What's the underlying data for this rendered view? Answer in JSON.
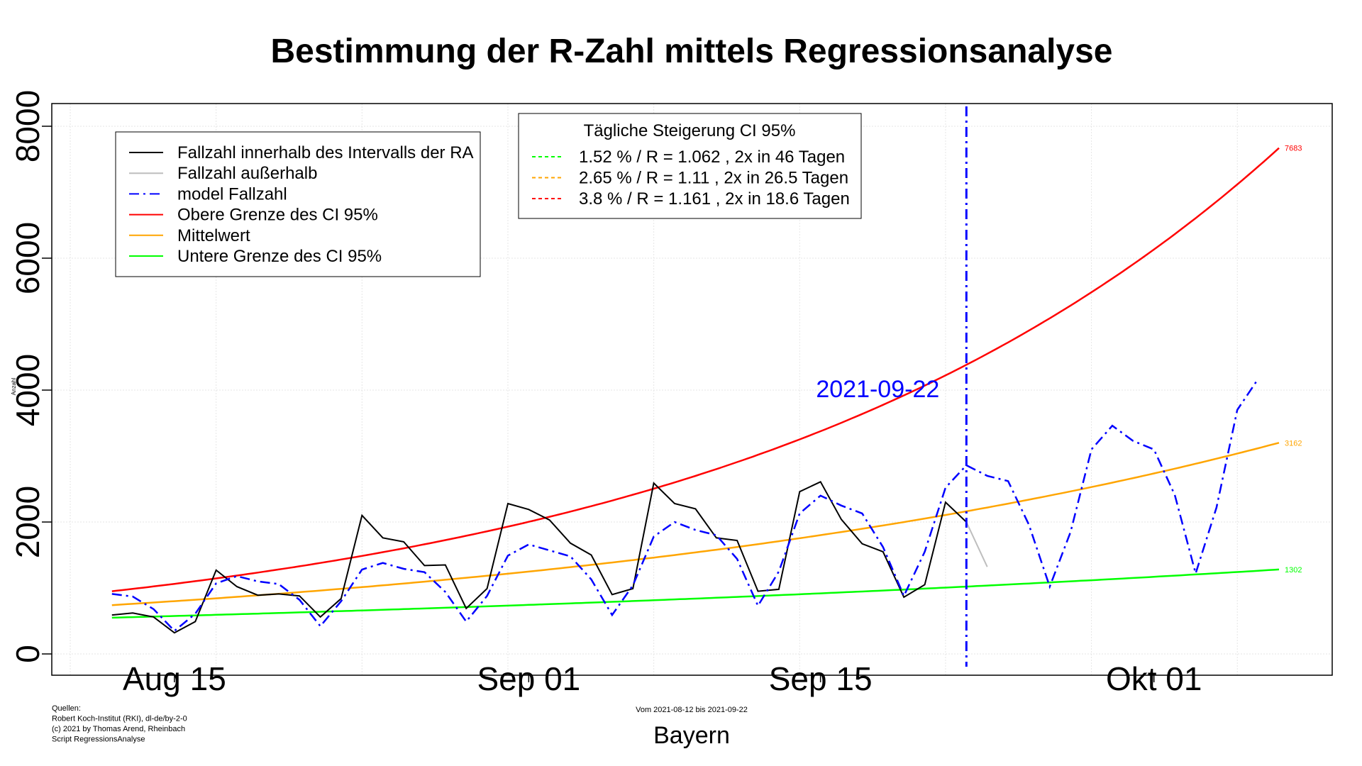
{
  "chart_data": {
    "type": "line",
    "title": "Bestimmung der R-Zahl mittels Regressionsanalyse",
    "ylabel": "Anzahl",
    "region": "Bayern",
    "range_note": "Vom 2021-08-12 bis 2021-09-22",
    "sources": [
      "Quellen:",
      "Robert Koch-Institut (RKI), dl-de/by-2-0",
      "(c) 2021 by Thomas Arend, Rheinbach",
      "Script RegressionsAnalyse"
    ],
    "xlim": [
      "2021-08-10",
      "2021-10-07"
    ],
    "ylim": [
      0,
      8000
    ],
    "yticks": [
      0,
      2000,
      4000,
      6000,
      8000
    ],
    "ytick_labels": [
      "0",
      "2000",
      "4000",
      "6000",
      "8000"
    ],
    "xticks": [
      "2021-08-15",
      "2021-09-01",
      "2021-09-15",
      "2021-10-01"
    ],
    "xtick_labels": [
      "Aug 15",
      "Sep 01",
      "Sep 15",
      "Okt 01"
    ],
    "grid": true,
    "cutoff": {
      "date": "2021-09-22",
      "label": "2021-09-22",
      "color": "#0000ff"
    },
    "series": [
      {
        "name": "Fallzahl innerhalb des Intervalls der RA",
        "color": "#000000",
        "style": "solid",
        "start": "2021-08-12",
        "values": [
          590,
          620,
          560,
          320,
          490,
          1270,
          1020,
          890,
          910,
          880,
          560,
          840,
          2100,
          1760,
          1700,
          1340,
          1350,
          690,
          990,
          2280,
          2190,
          2030,
          1680,
          1500,
          900,
          990,
          2590,
          2280,
          2200,
          1760,
          1720,
          950,
          980,
          2460,
          2610,
          2040,
          1670,
          1550,
          860,
          1050,
          2300,
          2000
        ]
      },
      {
        "name": "Fallzahl außerhalb",
        "color": "#bebebe",
        "style": "solid",
        "start": "2021-09-22",
        "values": [
          2000,
          1320
        ]
      },
      {
        "name": "model Fallzahl",
        "color": "#0000ff",
        "style": "dashdot",
        "start": "2021-08-12",
        "values": [
          910,
          870,
          680,
          350,
          610,
          1070,
          1180,
          1100,
          1060,
          820,
          420,
          800,
          1280,
          1380,
          1290,
          1240,
          940,
          490,
          880,
          1490,
          1660,
          1570,
          1480,
          1130,
          590,
          1040,
          1780,
          2000,
          1880,
          1800,
          1440,
          730,
          1250,
          2130,
          2400,
          2250,
          2130,
          1620,
          880,
          1550,
          2520,
          2860,
          2700,
          2620,
          1960,
          1020,
          1850,
          3100,
          3460,
          3230,
          3100,
          2410,
          1220,
          2220,
          3700,
          4170
        ]
      }
    ],
    "curves": [
      {
        "name": "Obere Grenze des CI 95%",
        "color": "#ff0000",
        "start_value": 950,
        "daily_growth": 0.038,
        "end_label": "7683"
      },
      {
        "name": "Mittelwert",
        "color": "#ffa500",
        "start_value": 740,
        "daily_growth": 0.0265,
        "end_label": "3162"
      },
      {
        "name": "Untere Grenze des CI 95%",
        "color": "#00ff00",
        "start_value": 550,
        "daily_growth": 0.0152,
        "end_label": "1302"
      }
    ],
    "curve_range": [
      "2021-08-12",
      "2021-10-07"
    ],
    "legend": {
      "position": "top-left",
      "entries": [
        {
          "label": "Fallzahl innerhalb des Intervalls der RA",
          "color": "#000000",
          "style": "solid"
        },
        {
          "label": "Fallzahl außerhalb",
          "color": "#bebebe",
          "style": "solid"
        },
        {
          "label": "model Fallzahl",
          "color": "#0000ff",
          "style": "dashdot"
        },
        {
          "label": "Obere Grenze des CI 95%",
          "color": "#ff0000",
          "style": "solid"
        },
        {
          "label": "Mittelwert",
          "color": "#ffa500",
          "style": "solid"
        },
        {
          "label": "Untere Grenze des CI 95%",
          "color": "#00ff00",
          "style": "solid"
        }
      ]
    },
    "ci_legend": {
      "position": "top-center",
      "title": "Tägliche Steigerung CI  95%",
      "entries": [
        {
          "label": "1.52 % / R = 1.062 , 2x in 46 Tagen",
          "color": "#00ff00",
          "style": "dotted"
        },
        {
          "label": "2.65 % / R = 1.11 , 2x in 26.5 Tagen",
          "color": "#ffa500",
          "style": "dotted"
        },
        {
          "label": "3.8 % / R = 1.161 , 2x in 18.6 Tagen",
          "color": "#ff0000",
          "style": "dotted"
        }
      ]
    }
  }
}
